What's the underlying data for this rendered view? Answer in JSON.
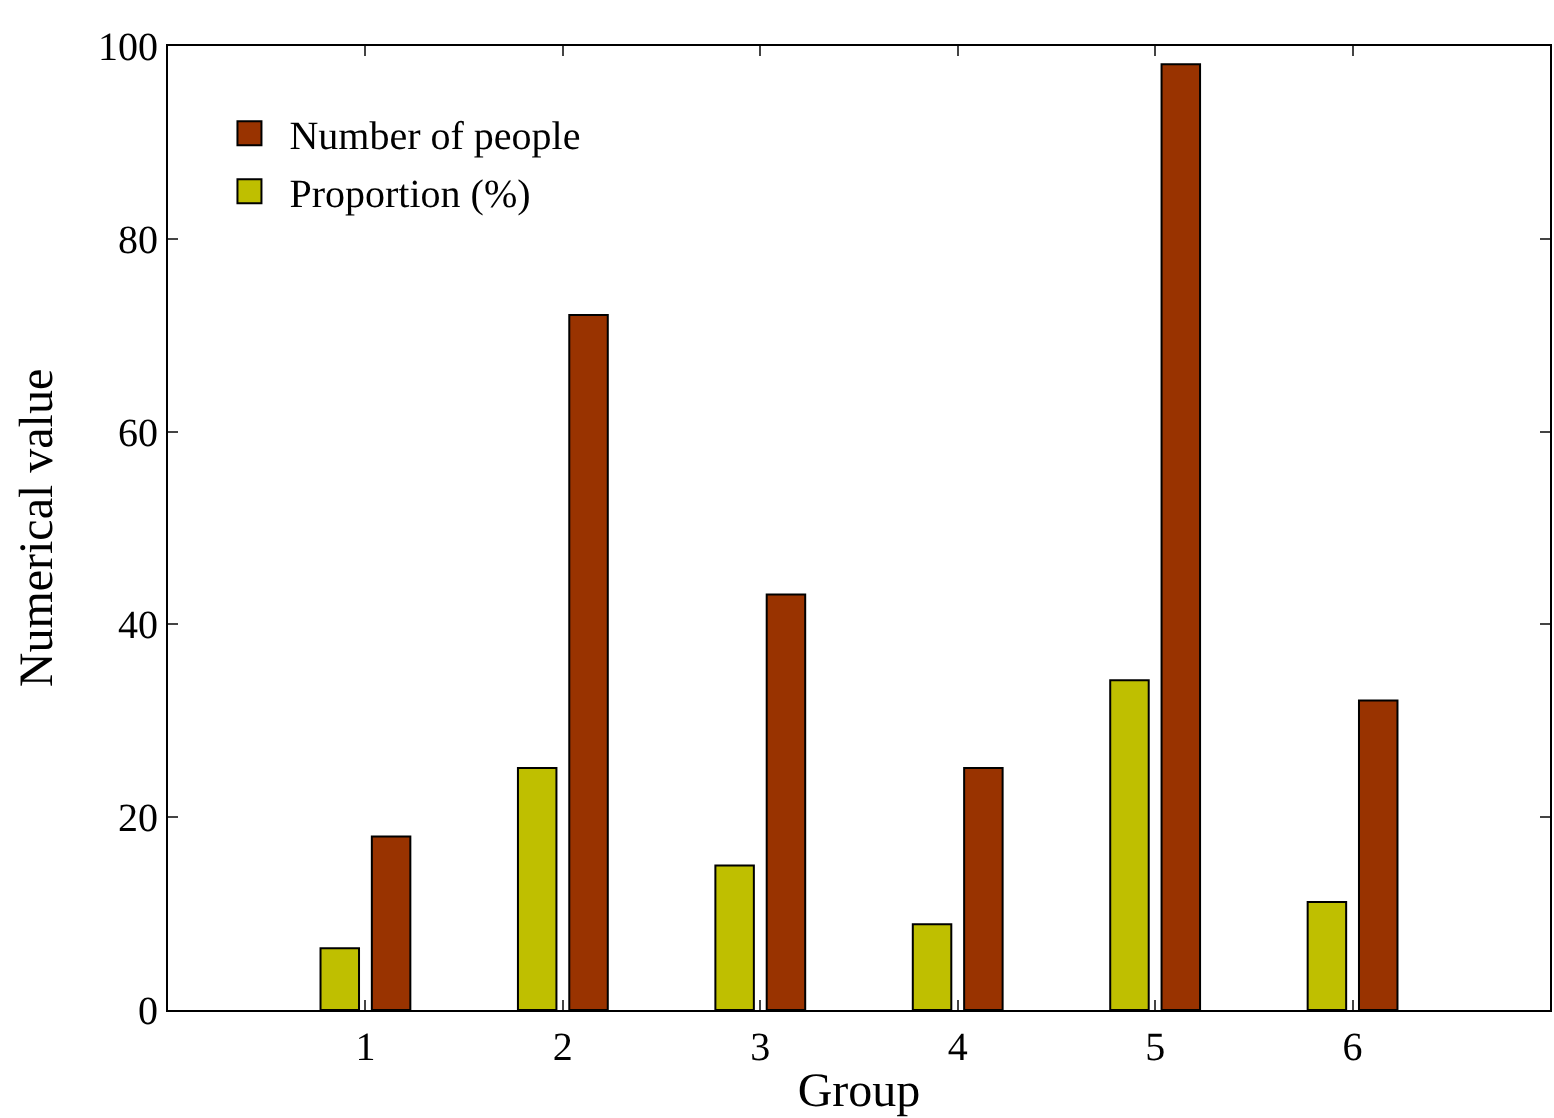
{
  "chart_data": {
    "type": "bar",
    "xlabel": "Group",
    "ylabel": "Numerical value",
    "x": [
      1,
      2,
      3,
      4,
      5,
      6
    ],
    "series": [
      {
        "name": "Proportion (%)",
        "color": "#bfbf00",
        "values": [
          6.4,
          25.1,
          15.0,
          8.9,
          34.2,
          11.2
        ]
      },
      {
        "name": "Number of people",
        "color": "#993300",
        "values": [
          18.0,
          72.1,
          43.1,
          25.1,
          98.1,
          32.1
        ]
      }
    ],
    "xlim": [
      0,
      7
    ],
    "xticks": [
      1,
      2,
      3,
      4,
      5,
      6
    ],
    "ylim": [
      0,
      100
    ],
    "yticks": [
      0,
      20,
      40,
      60,
      80,
      100
    ],
    "legend": "top left"
  }
}
